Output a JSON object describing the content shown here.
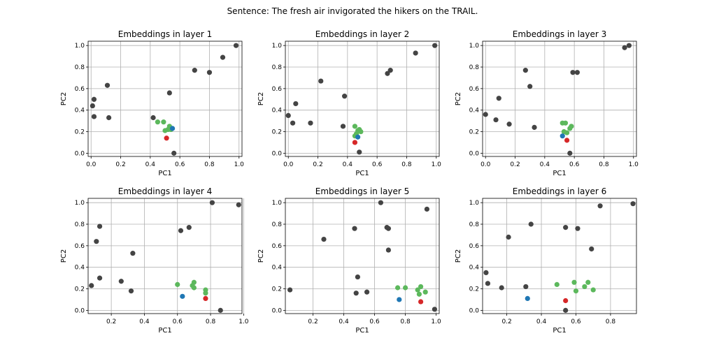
{
  "figure": {
    "suptitle": "Sentence: The fresh air invigorated the hikers on the TRAIL.",
    "colors": {
      "other": "#444444",
      "green": "#5cb85c",
      "blue": "#1f77b4",
      "red": "#d62728",
      "grid": "#b0b0b0"
    }
  },
  "chart_data": [
    {
      "type": "scatter",
      "title": "Embeddings in layer 1",
      "xlabel": "PC1",
      "ylabel": "PC2",
      "xlim": [
        -0.02,
        1.02
      ],
      "ylim": [
        -0.03,
        1.04
      ],
      "xticks": [
        0.0,
        0.2,
        0.4,
        0.6,
        0.8,
        1.0
      ],
      "yticks": [
        0.0,
        0.2,
        0.4,
        0.6,
        0.8,
        1.0
      ],
      "grid": true,
      "points": [
        {
          "x": 0.02,
          "y": 0.5,
          "c": "other"
        },
        {
          "x": 0.01,
          "y": 0.44,
          "c": "other"
        },
        {
          "x": 0.02,
          "y": 0.34,
          "c": "other"
        },
        {
          "x": 0.11,
          "y": 0.63,
          "c": "other"
        },
        {
          "x": 0.12,
          "y": 0.33,
          "c": "other"
        },
        {
          "x": 0.42,
          "y": 0.33,
          "c": "other"
        },
        {
          "x": 0.53,
          "y": 0.56,
          "c": "other"
        },
        {
          "x": 0.56,
          "y": 0.0,
          "c": "other"
        },
        {
          "x": 0.7,
          "y": 0.77,
          "c": "other"
        },
        {
          "x": 0.8,
          "y": 0.75,
          "c": "other"
        },
        {
          "x": 0.89,
          "y": 0.89,
          "c": "other"
        },
        {
          "x": 0.98,
          "y": 1.0,
          "c": "other"
        },
        {
          "x": 0.45,
          "y": 0.29,
          "c": "green"
        },
        {
          "x": 0.49,
          "y": 0.29,
          "c": "green"
        },
        {
          "x": 0.5,
          "y": 0.21,
          "c": "green"
        },
        {
          "x": 0.52,
          "y": 0.22,
          "c": "green"
        },
        {
          "x": 0.53,
          "y": 0.25,
          "c": "green"
        },
        {
          "x": 0.54,
          "y": 0.22,
          "c": "green"
        },
        {
          "x": 0.55,
          "y": 0.23,
          "c": "blue"
        },
        {
          "x": 0.51,
          "y": 0.14,
          "c": "red"
        }
      ]
    },
    {
      "type": "scatter",
      "title": "Embeddings in layer 2",
      "xlabel": "PC1",
      "ylabel": "PC2",
      "xlim": [
        -0.02,
        1.02
      ],
      "ylim": [
        -0.03,
        1.04
      ],
      "xticks": [
        0.0,
        0.2,
        0.4,
        0.6,
        0.8,
        1.0
      ],
      "yticks": [
        0.0,
        0.2,
        0.4,
        0.6,
        0.8,
        1.0
      ],
      "grid": true,
      "points": [
        {
          "x": 0.0,
          "y": 0.35,
          "c": "other"
        },
        {
          "x": 0.03,
          "y": 0.28,
          "c": "other"
        },
        {
          "x": 0.05,
          "y": 0.46,
          "c": "other"
        },
        {
          "x": 0.15,
          "y": 0.28,
          "c": "other"
        },
        {
          "x": 0.22,
          "y": 0.67,
          "c": "other"
        },
        {
          "x": 0.38,
          "y": 0.53,
          "c": "other"
        },
        {
          "x": 0.37,
          "y": 0.25,
          "c": "other"
        },
        {
          "x": 0.48,
          "y": 0.01,
          "c": "other"
        },
        {
          "x": 0.67,
          "y": 0.74,
          "c": "other"
        },
        {
          "x": 0.69,
          "y": 0.77,
          "c": "other"
        },
        {
          "x": 0.86,
          "y": 0.93,
          "c": "other"
        },
        {
          "x": 0.99,
          "y": 1.0,
          "c": "other"
        },
        {
          "x": 0.45,
          "y": 0.25,
          "c": "green"
        },
        {
          "x": 0.46,
          "y": 0.18,
          "c": "green"
        },
        {
          "x": 0.47,
          "y": 0.21,
          "c": "green"
        },
        {
          "x": 0.48,
          "y": 0.22,
          "c": "green"
        },
        {
          "x": 0.49,
          "y": 0.2,
          "c": "green"
        },
        {
          "x": 0.45,
          "y": 0.16,
          "c": "green"
        },
        {
          "x": 0.47,
          "y": 0.15,
          "c": "blue"
        },
        {
          "x": 0.45,
          "y": 0.1,
          "c": "red"
        }
      ]
    },
    {
      "type": "scatter",
      "title": "Embeddings in layer 3",
      "xlabel": "PC1",
      "ylabel": "PC2",
      "xlim": [
        -0.02,
        1.02
      ],
      "ylim": [
        -0.03,
        1.04
      ],
      "xticks": [
        0.0,
        0.2,
        0.4,
        0.6,
        0.8,
        1.0
      ],
      "yticks": [
        0.0,
        0.2,
        0.4,
        0.6,
        0.8,
        1.0
      ],
      "grid": true,
      "points": [
        {
          "x": 0.0,
          "y": 0.36,
          "c": "other"
        },
        {
          "x": 0.07,
          "y": 0.31,
          "c": "other"
        },
        {
          "x": 0.09,
          "y": 0.51,
          "c": "other"
        },
        {
          "x": 0.16,
          "y": 0.27,
          "c": "other"
        },
        {
          "x": 0.27,
          "y": 0.77,
          "c": "other"
        },
        {
          "x": 0.3,
          "y": 0.62,
          "c": "other"
        },
        {
          "x": 0.33,
          "y": 0.24,
          "c": "other"
        },
        {
          "x": 0.57,
          "y": 0.0,
          "c": "other"
        },
        {
          "x": 0.59,
          "y": 0.75,
          "c": "other"
        },
        {
          "x": 0.62,
          "y": 0.75,
          "c": "other"
        },
        {
          "x": 0.94,
          "y": 0.98,
          "c": "other"
        },
        {
          "x": 0.97,
          "y": 1.0,
          "c": "other"
        },
        {
          "x": 0.52,
          "y": 0.28,
          "c": "green"
        },
        {
          "x": 0.54,
          "y": 0.28,
          "c": "green"
        },
        {
          "x": 0.53,
          "y": 0.2,
          "c": "green"
        },
        {
          "x": 0.55,
          "y": 0.19,
          "c": "green"
        },
        {
          "x": 0.57,
          "y": 0.23,
          "c": "green"
        },
        {
          "x": 0.58,
          "y": 0.25,
          "c": "green"
        },
        {
          "x": 0.52,
          "y": 0.16,
          "c": "blue"
        },
        {
          "x": 0.55,
          "y": 0.12,
          "c": "red"
        }
      ]
    },
    {
      "type": "scatter",
      "title": "Embeddings in layer 4",
      "xlabel": "PC1",
      "ylabel": "PC2",
      "xlim": [
        0.06,
        0.99
      ],
      "ylim": [
        -0.03,
        1.04
      ],
      "xticks": [
        0.2,
        0.4,
        0.6,
        0.8,
        1.0
      ],
      "yticks": [
        0.0,
        0.2,
        0.4,
        0.6,
        0.8,
        1.0
      ],
      "grid": true,
      "points": [
        {
          "x": 0.08,
          "y": 0.23,
          "c": "other"
        },
        {
          "x": 0.11,
          "y": 0.64,
          "c": "other"
        },
        {
          "x": 0.13,
          "y": 0.78,
          "c": "other"
        },
        {
          "x": 0.13,
          "y": 0.3,
          "c": "other"
        },
        {
          "x": 0.26,
          "y": 0.27,
          "c": "other"
        },
        {
          "x": 0.32,
          "y": 0.18,
          "c": "other"
        },
        {
          "x": 0.33,
          "y": 0.53,
          "c": "other"
        },
        {
          "x": 0.62,
          "y": 0.74,
          "c": "other"
        },
        {
          "x": 0.67,
          "y": 0.77,
          "c": "other"
        },
        {
          "x": 0.81,
          "y": 1.0,
          "c": "other"
        },
        {
          "x": 0.86,
          "y": 0.0,
          "c": "other"
        },
        {
          "x": 0.97,
          "y": 0.98,
          "c": "other"
        },
        {
          "x": 0.6,
          "y": 0.24,
          "c": "green"
        },
        {
          "x": 0.69,
          "y": 0.23,
          "c": "green"
        },
        {
          "x": 0.7,
          "y": 0.26,
          "c": "green"
        },
        {
          "x": 0.7,
          "y": 0.21,
          "c": "green"
        },
        {
          "x": 0.77,
          "y": 0.19,
          "c": "green"
        },
        {
          "x": 0.77,
          "y": 0.16,
          "c": "green"
        },
        {
          "x": 0.63,
          "y": 0.13,
          "c": "blue"
        },
        {
          "x": 0.77,
          "y": 0.11,
          "c": "red"
        }
      ]
    },
    {
      "type": "scatter",
      "title": "Embeddings in layer 5",
      "xlabel": "PC1",
      "ylabel": "PC2",
      "xlim": [
        0.02,
        1.02
      ],
      "ylim": [
        -0.03,
        1.04
      ],
      "xticks": [
        0.2,
        0.4,
        0.6,
        0.8,
        1.0
      ],
      "yticks": [
        0.0,
        0.2,
        0.4,
        0.6,
        0.8,
        1.0
      ],
      "grid": true,
      "points": [
        {
          "x": 0.05,
          "y": 0.19,
          "c": "other"
        },
        {
          "x": 0.27,
          "y": 0.66,
          "c": "other"
        },
        {
          "x": 0.47,
          "y": 0.76,
          "c": "other"
        },
        {
          "x": 0.48,
          "y": 0.16,
          "c": "other"
        },
        {
          "x": 0.49,
          "y": 0.31,
          "c": "other"
        },
        {
          "x": 0.55,
          "y": 0.17,
          "c": "other"
        },
        {
          "x": 0.64,
          "y": 1.0,
          "c": "other"
        },
        {
          "x": 0.68,
          "y": 0.77,
          "c": "other"
        },
        {
          "x": 0.69,
          "y": 0.76,
          "c": "other"
        },
        {
          "x": 0.69,
          "y": 0.56,
          "c": "other"
        },
        {
          "x": 0.94,
          "y": 0.94,
          "c": "other"
        },
        {
          "x": 0.99,
          "y": 0.01,
          "c": "other"
        },
        {
          "x": 0.75,
          "y": 0.21,
          "c": "green"
        },
        {
          "x": 0.8,
          "y": 0.21,
          "c": "green"
        },
        {
          "x": 0.88,
          "y": 0.19,
          "c": "green"
        },
        {
          "x": 0.9,
          "y": 0.22,
          "c": "green"
        },
        {
          "x": 0.89,
          "y": 0.15,
          "c": "green"
        },
        {
          "x": 0.93,
          "y": 0.17,
          "c": "green"
        },
        {
          "x": 0.76,
          "y": 0.1,
          "c": "blue"
        },
        {
          "x": 0.9,
          "y": 0.08,
          "c": "red"
        }
      ]
    },
    {
      "type": "scatter",
      "title": "Embeddings in layer 6",
      "xlabel": "PC1",
      "ylabel": "PC2",
      "xlim": [
        0.06,
        0.95
      ],
      "ylim": [
        -0.03,
        1.04
      ],
      "xticks": [
        0.2,
        0.4,
        0.6,
        0.8
      ],
      "yticks": [
        0.0,
        0.2,
        0.4,
        0.6,
        0.8,
        1.0
      ],
      "grid": true,
      "points": [
        {
          "x": 0.08,
          "y": 0.35,
          "c": "other"
        },
        {
          "x": 0.09,
          "y": 0.25,
          "c": "other"
        },
        {
          "x": 0.17,
          "y": 0.21,
          "c": "other"
        },
        {
          "x": 0.21,
          "y": 0.68,
          "c": "other"
        },
        {
          "x": 0.31,
          "y": 0.22,
          "c": "other"
        },
        {
          "x": 0.34,
          "y": 0.8,
          "c": "other"
        },
        {
          "x": 0.54,
          "y": 0.77,
          "c": "other"
        },
        {
          "x": 0.54,
          "y": 0.0,
          "c": "other"
        },
        {
          "x": 0.61,
          "y": 0.76,
          "c": "other"
        },
        {
          "x": 0.69,
          "y": 0.57,
          "c": "other"
        },
        {
          "x": 0.74,
          "y": 0.97,
          "c": "other"
        },
        {
          "x": 0.93,
          "y": 0.99,
          "c": "other"
        },
        {
          "x": 0.49,
          "y": 0.24,
          "c": "green"
        },
        {
          "x": 0.59,
          "y": 0.26,
          "c": "green"
        },
        {
          "x": 0.6,
          "y": 0.18,
          "c": "green"
        },
        {
          "x": 0.65,
          "y": 0.22,
          "c": "green"
        },
        {
          "x": 0.67,
          "y": 0.26,
          "c": "green"
        },
        {
          "x": 0.7,
          "y": 0.19,
          "c": "green"
        },
        {
          "x": 0.32,
          "y": 0.11,
          "c": "blue"
        },
        {
          "x": 0.54,
          "y": 0.09,
          "c": "red"
        }
      ]
    }
  ]
}
